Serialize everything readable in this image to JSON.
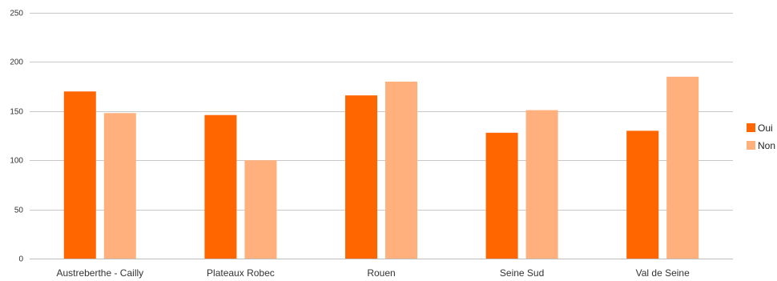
{
  "chart_data": {
    "type": "bar",
    "categories": [
      "Austreberthe - Cailly",
      "Plateaux Robec",
      "Rouen",
      "Seine Sud",
      "Val de Seine"
    ],
    "series": [
      {
        "name": "Oui",
        "color": "#ff6600",
        "values": [
          170,
          146,
          166,
          128,
          130
        ]
      },
      {
        "name": "Non",
        "color": "#ffb07c",
        "values": [
          148,
          100,
          180,
          151,
          185
        ]
      }
    ],
    "ylim": [
      0,
      250
    ],
    "yticks": [
      0,
      50,
      100,
      150,
      200,
      250
    ],
    "grid": true,
    "legend_position": "right",
    "title": "",
    "xlabel": "",
    "ylabel": ""
  }
}
